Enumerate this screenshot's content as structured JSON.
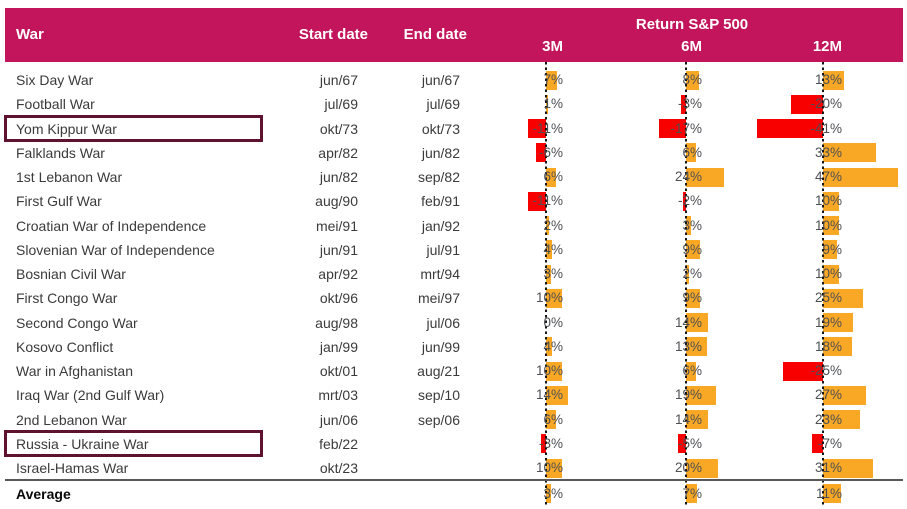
{
  "header": {
    "war": "War",
    "start_date": "Start date",
    "end_date": "End date",
    "return_group": "Return S&P 500",
    "periods": [
      "3M",
      "6M",
      "12M"
    ]
  },
  "table": {
    "average_label": "Average",
    "rows": [
      {
        "war": "Six Day War",
        "start": "jun/67",
        "end": "jun/67",
        "highlight": false
      },
      {
        "war": "Football War",
        "start": "jul/69",
        "end": "jul/69",
        "highlight": false
      },
      {
        "war": "Yom Kippur War",
        "start": "okt/73",
        "end": "okt/73",
        "highlight": true
      },
      {
        "war": "Falklands War",
        "start": "apr/82",
        "end": "jun/82",
        "highlight": false
      },
      {
        "war": "1st Lebanon War",
        "start": "jun/82",
        "end": "sep/82",
        "highlight": false
      },
      {
        "war": "First Gulf War",
        "start": "aug/90",
        "end": "feb/91",
        "highlight": false
      },
      {
        "war": "Croatian War of Independence",
        "start": "mei/91",
        "end": "jan/92",
        "highlight": false
      },
      {
        "war": "Slovenian War of Independence",
        "start": "jun/91",
        "end": "jul/91",
        "highlight": false
      },
      {
        "war": "Bosnian Civil War",
        "start": "apr/92",
        "end": "mrt/94",
        "highlight": false
      },
      {
        "war": "First Congo War",
        "start": "okt/96",
        "end": "mei/97",
        "highlight": false
      },
      {
        "war": "Second Congo War",
        "start": "aug/98",
        "end": "jul/06",
        "highlight": false
      },
      {
        "war": "Kosovo Conflict",
        "start": "jan/99",
        "end": "jun/99",
        "highlight": false
      },
      {
        "war": "War in Afghanistan",
        "start": "okt/01",
        "end": "aug/21",
        "highlight": false
      },
      {
        "war": "Iraq War (2nd Gulf War)",
        "start": "mrt/03",
        "end": "sep/10",
        "highlight": false
      },
      {
        "war": "2nd Lebanon War",
        "start": "jun/06",
        "end": "sep/06",
        "highlight": false
      },
      {
        "war": "Russia - Ukraine War",
        "start": "feb/22",
        "end": "",
        "highlight": true
      },
      {
        "war": "Israel-Hamas War",
        "start": "okt/23",
        "end": "",
        "highlight": false
      }
    ]
  },
  "chart_data": {
    "type": "bar",
    "orientation": "horizontal",
    "title": "Return S&P 500",
    "unit": "%",
    "categories": [
      "Six Day War",
      "Football War",
      "Yom Kippur War",
      "Falklands War",
      "1st Lebanon War",
      "First Gulf War",
      "Croatian War of Independence",
      "Slovenian War of Independence",
      "Bosnian Civil War",
      "First Congo War",
      "Second Congo War",
      "Kosovo Conflict",
      "War in Afghanistan",
      "Iraq War (2nd Gulf War)",
      "2nd Lebanon War",
      "Russia - Ukraine War",
      "Israel-Hamas War"
    ],
    "series": [
      {
        "name": "3M",
        "values": [
          7,
          1,
          -11,
          -6,
          6,
          -11,
          2,
          4,
          3,
          10,
          0,
          4,
          10,
          14,
          6,
          -3,
          10
        ]
      },
      {
        "name": "6M",
        "values": [
          8,
          -3,
          -17,
          6,
          24,
          -2,
          3,
          9,
          2,
          9,
          14,
          13,
          6,
          19,
          14,
          -5,
          20
        ]
      },
      {
        "name": "12M",
        "values": [
          13,
          -20,
          -41,
          33,
          47,
          10,
          10,
          9,
          10,
          25,
          19,
          18,
          -25,
          27,
          23,
          -7,
          31
        ]
      }
    ],
    "average": {
      "3M": 3,
      "6M": 7,
      "12M": 11
    },
    "highlighted_categories": [
      "Yom Kippur War",
      "Russia - Ukraine War"
    ],
    "legend_position": "none",
    "grid": "zero-axis-dashed-per-column"
  },
  "colors": {
    "header_bg": "#C2155B",
    "positive_bar": "#F9A825",
    "negative_bar": "#F80000",
    "highlight_border": "#5E122F",
    "average_separator": "#58585A",
    "row_text": "#3B3B3B",
    "value_text": "#4D4F53"
  }
}
